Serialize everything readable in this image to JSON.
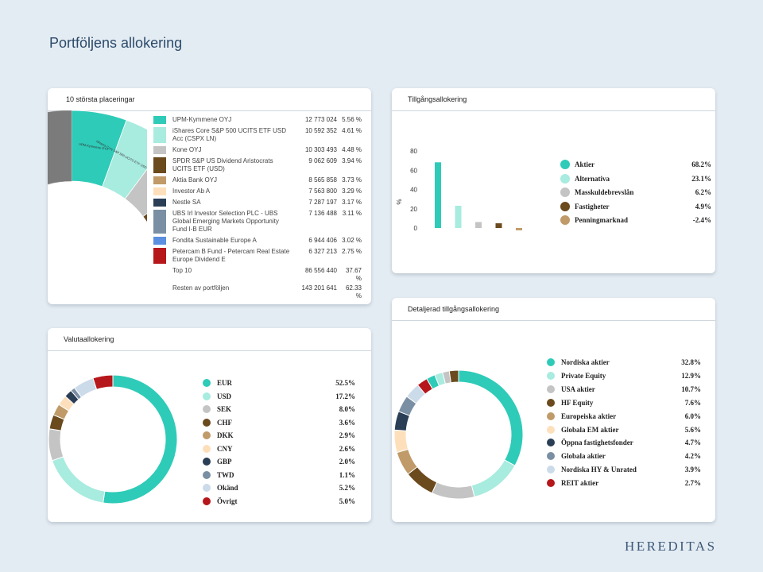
{
  "page": {
    "title": "Portföljens allokering",
    "brand": "HEREDITAS"
  },
  "colors": {
    "teal": "#2ecbb8",
    "mint": "#a8ebdf",
    "grey": "#c4c4c4",
    "brown": "#6b4a1e",
    "tan": "#c09a68",
    "peach": "#fde0bb",
    "navy": "#2a3e55",
    "slate": "#7a8fa3",
    "lightblue": "#ccdbe9",
    "red": "#b5171b",
    "blue": "#5b8fe0",
    "darkgrey": "#7b7b7b"
  },
  "top10": {
    "title": "10 största placeringar",
    "items": [
      {
        "name": "UPM-Kymmene OYJ",
        "value": "12 773 024",
        "pct": "5.56 %",
        "color": "#2ecbb8",
        "pctnum": 5.56,
        "slice_label": "UPM-Kymmene OYJ"
      },
      {
        "name": "iShares Core S&P 500 UCITS ETF USD Acc (CSPX LN)",
        "value": "10 592 352",
        "pct": "4.61 %",
        "color": "#a8ebdf",
        "pctnum": 4.61,
        "slice_label": "iShares Core S&P 500 UCITS ETF USD Acc (CSPX LN)"
      },
      {
        "name": "Kone OYJ",
        "value": "10 303 493",
        "pct": "4.48 %",
        "color": "#c4c4c4",
        "pctnum": 4.48,
        "slice_label": "Kone OYJ"
      },
      {
        "name": "SPDR S&P US Dividend Aristocrats UCITS ETF (USD)",
        "value": "9 062 609",
        "pct": "3.94 %",
        "color": "#6b4a1e",
        "pctnum": 3.94,
        "slice_label": "SPDR S&P US Dividend"
      },
      {
        "name": "Aktia Bank OYJ",
        "value": "8 565 858",
        "pct": "3.73 %",
        "color": "#c09a68",
        "pctnum": 3.73,
        "slice_label": "Aktia Bank OYJ"
      },
      {
        "name": "Investor Ab A",
        "value": "7 563 800",
        "pct": "3.29 %",
        "color": "#fde0bb",
        "pctnum": 3.29,
        "slice_label": "Investor Ab A"
      },
      {
        "name": "Nestle SA",
        "value": "7 287 197",
        "pct": "3.17 %",
        "color": "#2a3e55",
        "pctnum": 3.17,
        "slice_label": "Nestle SA"
      },
      {
        "name": "UBS Irl Investor Selection PLC - UBS Global Emerging Markets Opportunity Fund I-B EUR",
        "value": "7 136 488",
        "pct": "3.11 %",
        "color": "#7a8fa3",
        "pctnum": 3.11,
        "slice_label": "UBS Irl Investor Selection"
      },
      {
        "name": "Fondita Sustainable Europe A",
        "value": "6 944 406",
        "pct": "3.02 %",
        "color": "#5b8fe0",
        "pctnum": 3.02,
        "slice_label": "Fondita Sustainable Europe A"
      },
      {
        "name": "Petercam B Fund - Petercam Real Estate Europe Dividend E",
        "value": "6 327 213",
        "pct": "2.75 %",
        "color": "#b5171b",
        "pctnum": 2.75,
        "slice_label": "Petercam B Fund"
      }
    ],
    "top_label": "Top 10",
    "top_value": "86 556 440",
    "top_pct": "37.67 %",
    "rest_label": "Resten av portföljen",
    "rest_value": "143 201 641",
    "rest_pct": "62.33 %"
  },
  "chart_data": [
    {
      "type": "bar",
      "title": "Tillgångsallokering",
      "categories": [
        "Aktier",
        "Alternativa",
        "Masskuldebrevslån",
        "Fastigheter",
        "Penningmarknad"
      ],
      "values": [
        68.2,
        23.1,
        6.2,
        4.9,
        -2.4
      ],
      "labels": [
        "68.2%",
        "23.1%",
        "6.2%",
        "4.9%",
        "-2.4%"
      ],
      "colors": [
        "#2ecbb8",
        "#a8ebdf",
        "#c4c4c4",
        "#6b4a1e",
        "#c09a68"
      ],
      "ylabel": "%",
      "yticks": [
        0,
        20,
        40,
        60,
        80
      ],
      "ylim": [
        -5,
        85
      ]
    },
    {
      "type": "pie",
      "title": "Valutaallokering",
      "categories": [
        "EUR",
        "USD",
        "SEK",
        "CHF",
        "DKK",
        "CNY",
        "GBP",
        "TWD",
        "Okänd",
        "Övrigt"
      ],
      "values": [
        52.5,
        17.2,
        8.0,
        3.6,
        2.9,
        2.6,
        2.0,
        1.1,
        5.2,
        5.0
      ],
      "labels": [
        "52.5%",
        "17.2%",
        "8.0%",
        "3.6%",
        "2.9%",
        "2.6%",
        "2.0%",
        "1.1%",
        "5.2%",
        "5.0%"
      ],
      "colors": [
        "#2ecbb8",
        "#a8ebdf",
        "#c4c4c4",
        "#6b4a1e",
        "#c09a68",
        "#fde0bb",
        "#2a3e55",
        "#7a8fa3",
        "#ccdbe9",
        "#b5171b"
      ]
    },
    {
      "type": "pie",
      "title": "Detaljerad tillgångsallokering",
      "categories": [
        "Nordiska aktier",
        "Private Equity",
        "USA aktier",
        "HF Equity",
        "Europeiska aktier",
        "Globala EM aktier",
        "Öppna fastighetsfonder",
        "Globala aktier",
        "Nordiska HY & Unrated",
        "REIT aktier"
      ],
      "values": [
        32.8,
        12.9,
        10.7,
        7.6,
        6.0,
        5.6,
        4.7,
        4.2,
        3.9,
        2.7
      ],
      "labels": [
        "32.8%",
        "12.9%",
        "10.7%",
        "7.6%",
        "6.0%",
        "5.6%",
        "4.7%",
        "4.2%",
        "3.9%",
        "2.7%"
      ],
      "colors": [
        "#2ecbb8",
        "#a8ebdf",
        "#c4c4c4",
        "#6b4a1e",
        "#c09a68",
        "#fde0bb",
        "#2a3e55",
        "#7a8fa3",
        "#ccdbe9",
        "#b5171b"
      ],
      "extra_slices": [
        {
          "value": 2.2,
          "color": "#2ecbb8"
        },
        {
          "value": 2.0,
          "color": "#a8ebdf"
        },
        {
          "value": 1.7,
          "color": "#c4c4c4"
        },
        {
          "value": 2.3,
          "color": "#6b4a1e"
        }
      ]
    }
  ]
}
